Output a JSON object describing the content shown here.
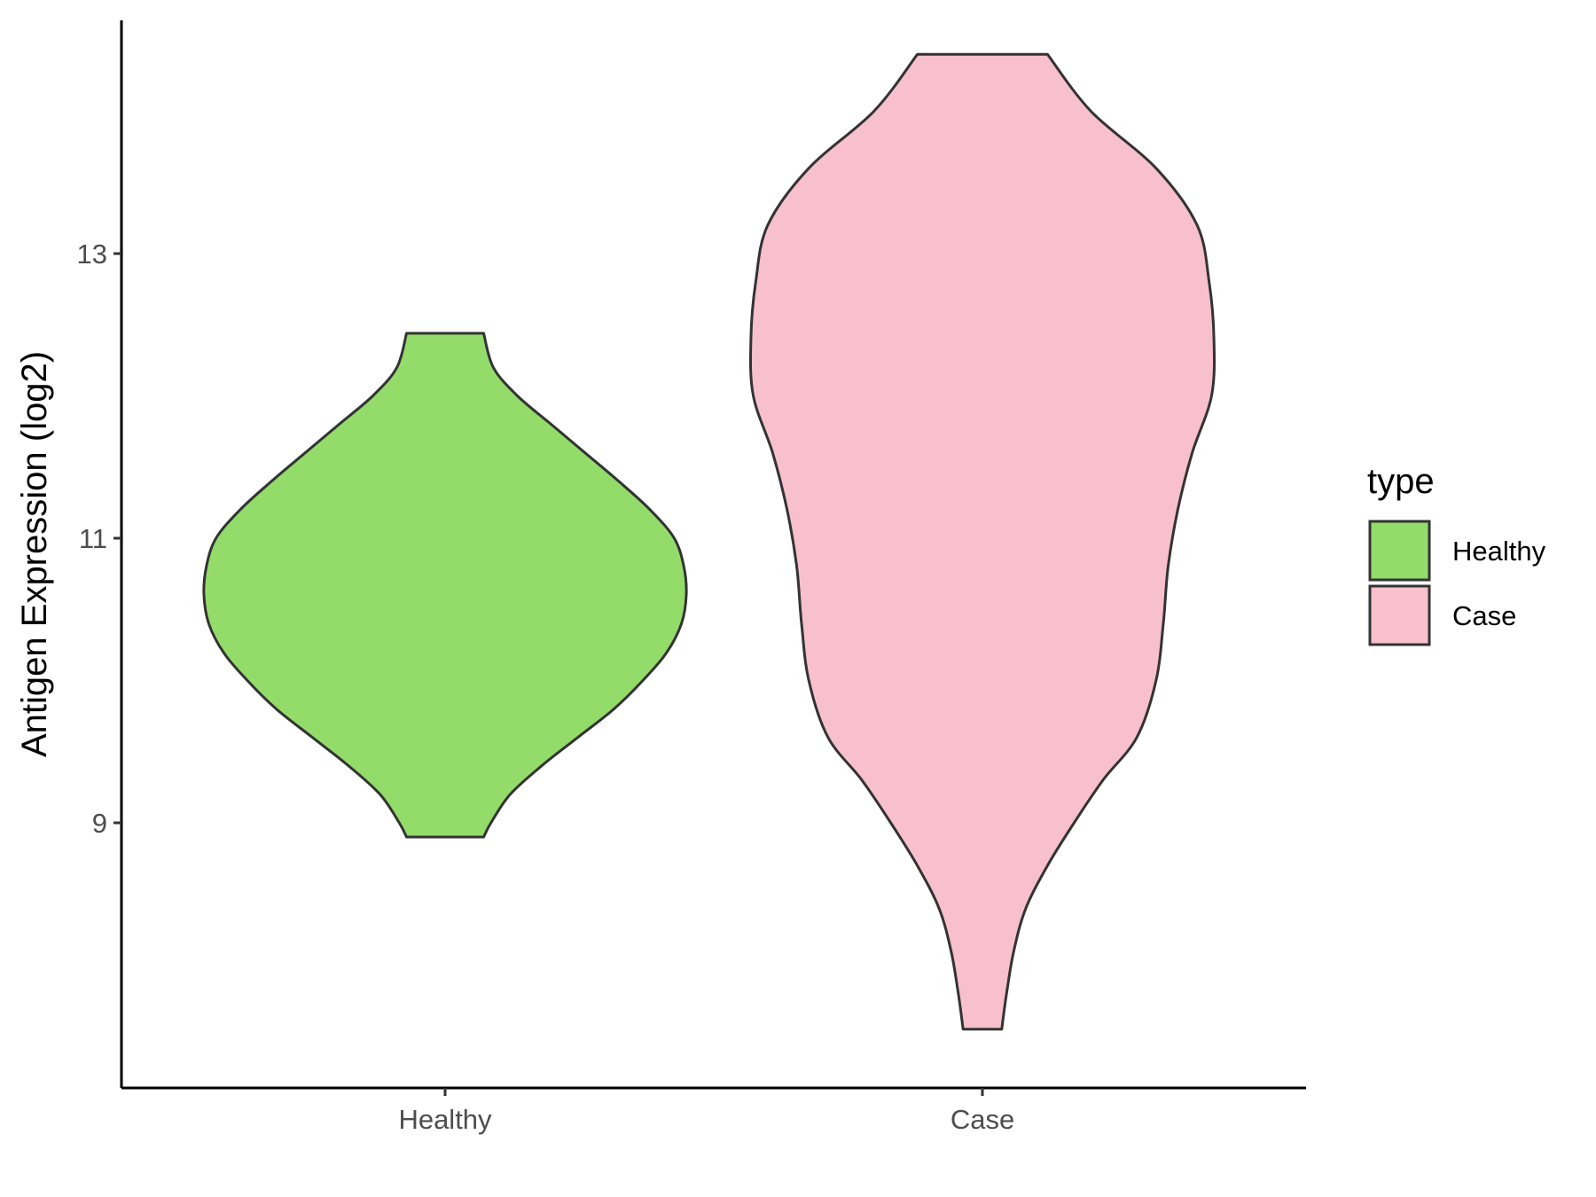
{
  "chart_data": {
    "type": "violin",
    "title": "",
    "xlabel": "",
    "ylabel": "Antigen Expression (log2)",
    "categories": [
      "Healthy",
      "Case"
    ],
    "y_ticks": [
      9,
      11,
      13
    ],
    "ylim": [
      7.2,
      14.75
    ],
    "grid": false,
    "legend": {
      "title": "type",
      "position": "right",
      "entries": [
        {
          "label": "Healthy",
          "color": "#93DC6A"
        },
        {
          "label": "Case",
          "color": "#F7C0CC"
        }
      ]
    },
    "series": [
      {
        "name": "Healthy",
        "color": "#93DC6A",
        "min": 8.9,
        "max": 12.44,
        "density_profile": [
          [
            8.9,
            0.16
          ],
          [
            9.0,
            0.19
          ],
          [
            9.2,
            0.27
          ],
          [
            9.4,
            0.4
          ],
          [
            9.6,
            0.55
          ],
          [
            9.8,
            0.7
          ],
          [
            10.0,
            0.82
          ],
          [
            10.2,
            0.92
          ],
          [
            10.4,
            0.98
          ],
          [
            10.6,
            1.0
          ],
          [
            10.8,
            0.99
          ],
          [
            11.0,
            0.95
          ],
          [
            11.2,
            0.85
          ],
          [
            11.4,
            0.72
          ],
          [
            11.6,
            0.58
          ],
          [
            11.8,
            0.44
          ],
          [
            12.0,
            0.3
          ],
          [
            12.2,
            0.2
          ],
          [
            12.44,
            0.16
          ]
        ]
      },
      {
        "name": "Case",
        "color": "#F7C0CC",
        "min": 7.55,
        "max": 14.4,
        "density_profile": [
          [
            7.55,
            0.08
          ],
          [
            7.8,
            0.1
          ],
          [
            8.1,
            0.13
          ],
          [
            8.4,
            0.18
          ],
          [
            8.7,
            0.27
          ],
          [
            9.0,
            0.38
          ],
          [
            9.3,
            0.5
          ],
          [
            9.6,
            0.64
          ],
          [
            10.0,
            0.72
          ],
          [
            10.4,
            0.75
          ],
          [
            10.8,
            0.77
          ],
          [
            11.2,
            0.81
          ],
          [
            11.6,
            0.87
          ],
          [
            12.0,
            0.95
          ],
          [
            12.4,
            0.96
          ],
          [
            12.8,
            0.94
          ],
          [
            13.2,
            0.89
          ],
          [
            13.6,
            0.72
          ],
          [
            14.0,
            0.45
          ],
          [
            14.4,
            0.27
          ]
        ]
      }
    ]
  }
}
